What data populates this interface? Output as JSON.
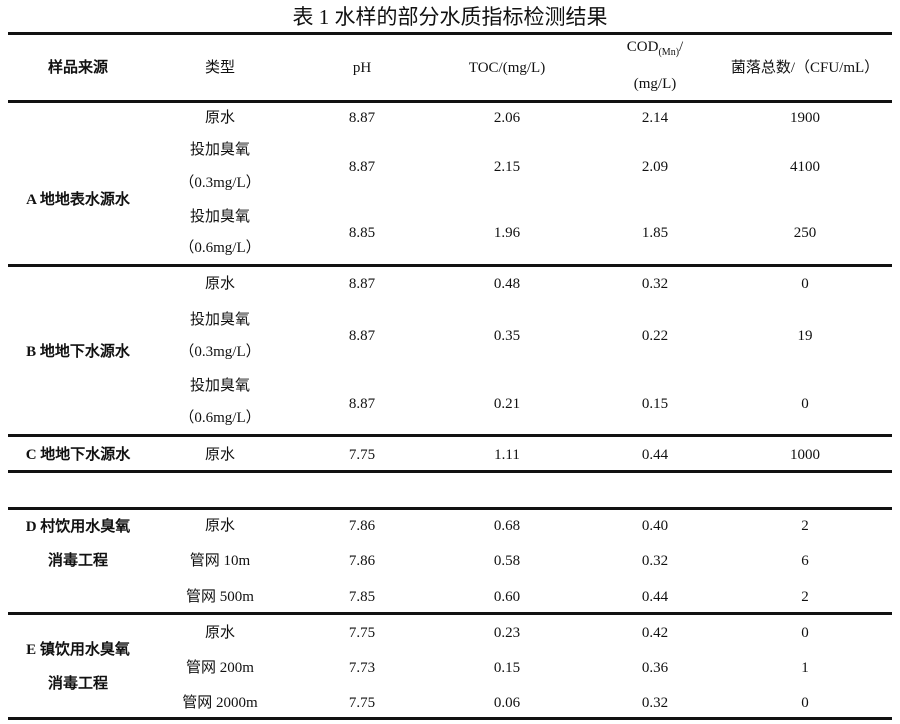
{
  "title": "表 1 水样的部分水质指标检测结果",
  "headers": {
    "source": "样品来源",
    "type": "类型",
    "ph": "pH",
    "toc": "TOC/(mg/L)",
    "cod_main": "COD",
    "cod_sub": "(Mn)",
    "cod_slash": "/",
    "cod_unit": "(mg/L)",
    "colonies": "菌落总数/（CFU/mL）"
  },
  "groups": [
    {
      "label": [
        "A 地地表水源水"
      ],
      "rows": [
        {
          "type": [
            "原水"
          ],
          "ph": "8.87",
          "toc": "2.06",
          "cod": "2.14",
          "colonies": "1900"
        },
        {
          "type": [
            "投加臭氧",
            "（0.3mg/L）"
          ],
          "ph": "8.87",
          "toc": "2.15",
          "cod": "2.09",
          "colonies": "4100"
        },
        {
          "type": [
            "投加臭氧",
            "（0.6mg/L）"
          ],
          "ph": "8.85",
          "toc": "1.96",
          "cod": "1.85",
          "colonies": "250"
        }
      ]
    },
    {
      "label": [
        "B 地地下水源水"
      ],
      "rows": [
        {
          "type": [
            "原水"
          ],
          "ph": "8.87",
          "toc": "0.48",
          "cod": "0.32",
          "colonies": "0"
        },
        {
          "type": [
            "投加臭氧",
            "（0.3mg/L）"
          ],
          "ph": "8.87",
          "toc": "0.35",
          "cod": "0.22",
          "colonies": "19"
        },
        {
          "type": [
            "投加臭氧",
            "（0.6mg/L）"
          ],
          "ph": "8.87",
          "toc": "0.21",
          "cod": "0.15",
          "colonies": "0"
        }
      ]
    },
    {
      "label": [
        "C 地地下水源水"
      ],
      "rows": [
        {
          "type": [
            "原水"
          ],
          "ph": "7.75",
          "toc": "1.11",
          "cod": "0.44",
          "colonies": "1000"
        }
      ]
    },
    {
      "label": [
        "D 村饮用水臭氧",
        "消毒工程"
      ],
      "rows": [
        {
          "type": [
            "原水"
          ],
          "ph": "7.86",
          "toc": "0.68",
          "cod": "0.40",
          "colonies": "2"
        },
        {
          "type": [
            "管网 10m"
          ],
          "ph": "7.86",
          "toc": "0.58",
          "cod": "0.32",
          "colonies": "6"
        },
        {
          "type": [
            "管网 500m"
          ],
          "ph": "7.85",
          "toc": "0.60",
          "cod": "0.44",
          "colonies": "2"
        }
      ]
    },
    {
      "label": [
        "E 镇饮用水臭氧",
        "消毒工程"
      ],
      "rows": [
        {
          "type": [
            "原水"
          ],
          "ph": "7.75",
          "toc": "0.23",
          "cod": "0.42",
          "colonies": "0"
        },
        {
          "type": [
            "管网 200m"
          ],
          "ph": "7.73",
          "toc": "0.15",
          "cod": "0.36",
          "colonies": "1"
        },
        {
          "type": [
            "管网 2000m"
          ],
          "ph": "7.75",
          "toc": "0.06",
          "cod": "0.32",
          "colonies": "0"
        }
      ]
    }
  ]
}
